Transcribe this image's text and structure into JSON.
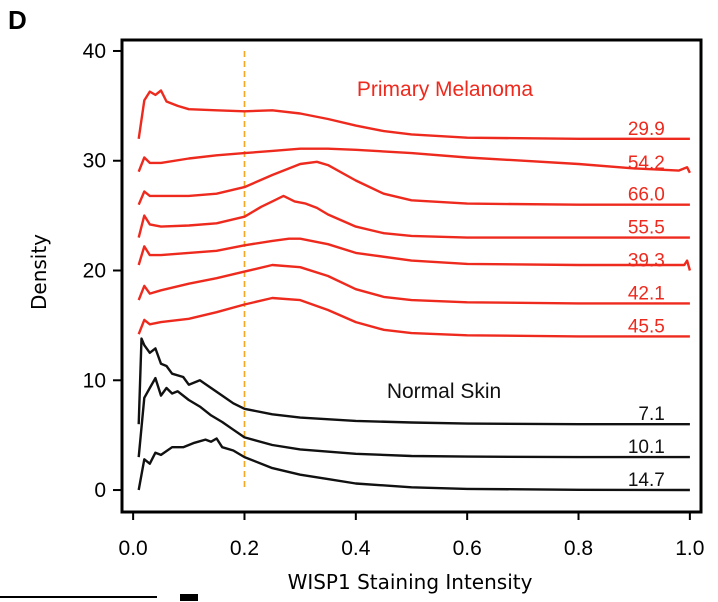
{
  "panel_letter": "D",
  "colors": {
    "melanoma": "#ee2a1e",
    "normal": "#111111",
    "reference_line": "#f5a623",
    "axis": "#000000"
  },
  "chart_data": {
    "type": "line",
    "title": "",
    "xlabel": "WISP1 Staining Intensity",
    "ylabel": "Density",
    "xlim": [
      -0.02,
      1.02
    ],
    "ylim": [
      -2,
      41
    ],
    "x_ticks": [
      "0.0",
      "0.2",
      "0.4",
      "0.6",
      "0.8",
      "1.0"
    ],
    "y_ticks": [
      "0",
      "10",
      "20",
      "30",
      "40"
    ],
    "reference_line_x": 0.2,
    "grid": false,
    "groups": [
      {
        "label": "Primary Melanoma",
        "color": "#ee2a1e"
      },
      {
        "label": "Normal Skin",
        "color": "#111111"
      }
    ],
    "series": [
      {
        "group": "Primary Melanoma",
        "label": "29.9",
        "color": "#ee2a1e",
        "points": [
          [
            0.01,
            32
          ],
          [
            0.02,
            35.5
          ],
          [
            0.03,
            36.3
          ],
          [
            0.04,
            36
          ],
          [
            0.05,
            36.4
          ],
          [
            0.06,
            35.4
          ],
          [
            0.08,
            35
          ],
          [
            0.1,
            34.7
          ],
          [
            0.15,
            34.6
          ],
          [
            0.2,
            34.5
          ],
          [
            0.25,
            34.6
          ],
          [
            0.3,
            34.3
          ],
          [
            0.35,
            33.8
          ],
          [
            0.4,
            33.2
          ],
          [
            0.45,
            32.7
          ],
          [
            0.5,
            32.4
          ],
          [
            0.6,
            32.1
          ],
          [
            0.8,
            32
          ],
          [
            1.0,
            32
          ]
        ]
      },
      {
        "group": "Primary Melanoma",
        "label": "54.2",
        "color": "#ee2a1e",
        "points": [
          [
            0.01,
            29
          ],
          [
            0.02,
            30.3
          ],
          [
            0.03,
            29.8
          ],
          [
            0.05,
            29.8
          ],
          [
            0.1,
            30.2
          ],
          [
            0.15,
            30.5
          ],
          [
            0.2,
            30.7
          ],
          [
            0.25,
            30.9
          ],
          [
            0.3,
            31.1
          ],
          [
            0.35,
            31.1
          ],
          [
            0.4,
            31
          ],
          [
            0.5,
            30.7
          ],
          [
            0.6,
            30.3
          ],
          [
            0.7,
            30
          ],
          [
            0.8,
            29.7
          ],
          [
            0.9,
            29.3
          ],
          [
            0.98,
            29.1
          ],
          [
            0.995,
            29.4
          ],
          [
            1.0,
            28.9
          ]
        ]
      },
      {
        "group": "Primary Melanoma",
        "label": "66.0",
        "color": "#ee2a1e",
        "points": [
          [
            0.01,
            26
          ],
          [
            0.02,
            27.2
          ],
          [
            0.03,
            26.8
          ],
          [
            0.05,
            26.8
          ],
          [
            0.1,
            26.8
          ],
          [
            0.15,
            27
          ],
          [
            0.2,
            27.6
          ],
          [
            0.25,
            28.7
          ],
          [
            0.3,
            29.7
          ],
          [
            0.33,
            29.9
          ],
          [
            0.35,
            29.6
          ],
          [
            0.4,
            28.2
          ],
          [
            0.45,
            27
          ],
          [
            0.5,
            26.4
          ],
          [
            0.6,
            26.1
          ],
          [
            0.8,
            26
          ],
          [
            1.0,
            26
          ]
        ]
      },
      {
        "group": "Primary Melanoma",
        "label": "55.5",
        "color": "#ee2a1e",
        "points": [
          [
            0.01,
            23
          ],
          [
            0.02,
            25
          ],
          [
            0.03,
            24.2
          ],
          [
            0.05,
            24
          ],
          [
            0.1,
            24.1
          ],
          [
            0.15,
            24.3
          ],
          [
            0.2,
            24.9
          ],
          [
            0.23,
            25.8
          ],
          [
            0.25,
            26.3
          ],
          [
            0.27,
            26.8
          ],
          [
            0.29,
            26.3
          ],
          [
            0.31,
            26.1
          ],
          [
            0.33,
            25.7
          ],
          [
            0.35,
            25.1
          ],
          [
            0.4,
            24
          ],
          [
            0.45,
            23.4
          ],
          [
            0.5,
            23.15
          ],
          [
            0.6,
            23
          ],
          [
            1.0,
            23
          ]
        ]
      },
      {
        "group": "Primary Melanoma",
        "label": "39.3",
        "color": "#ee2a1e",
        "points": [
          [
            0.01,
            20.5
          ],
          [
            0.02,
            22.2
          ],
          [
            0.03,
            21.4
          ],
          [
            0.05,
            21.4
          ],
          [
            0.1,
            21.6
          ],
          [
            0.15,
            21.8
          ],
          [
            0.2,
            22.3
          ],
          [
            0.25,
            22.7
          ],
          [
            0.28,
            22.9
          ],
          [
            0.3,
            22.9
          ],
          [
            0.35,
            22.4
          ],
          [
            0.4,
            21.6
          ],
          [
            0.5,
            20.9
          ],
          [
            0.6,
            20.6
          ],
          [
            0.8,
            20.5
          ],
          [
            0.99,
            20.5
          ],
          [
            0.995,
            20.9
          ],
          [
            1.0,
            20
          ]
        ]
      },
      {
        "group": "Primary Melanoma",
        "label": "42.1",
        "color": "#ee2a1e",
        "points": [
          [
            0.01,
            17.3
          ],
          [
            0.02,
            18.6
          ],
          [
            0.03,
            17.9
          ],
          [
            0.05,
            18.2
          ],
          [
            0.1,
            18.8
          ],
          [
            0.15,
            19.3
          ],
          [
            0.2,
            19.9
          ],
          [
            0.25,
            20.5
          ],
          [
            0.3,
            20.3
          ],
          [
            0.35,
            19.5
          ],
          [
            0.4,
            18.3
          ],
          [
            0.45,
            17.6
          ],
          [
            0.5,
            17.3
          ],
          [
            0.6,
            17.1
          ],
          [
            0.8,
            17
          ],
          [
            1.0,
            17
          ]
        ]
      },
      {
        "group": "Primary Melanoma",
        "label": "45.5",
        "color": "#ee2a1e",
        "points": [
          [
            0.01,
            14.2
          ],
          [
            0.02,
            15.5
          ],
          [
            0.03,
            15.1
          ],
          [
            0.05,
            15.3
          ],
          [
            0.1,
            15.6
          ],
          [
            0.15,
            16.2
          ],
          [
            0.2,
            16.9
          ],
          [
            0.25,
            17.5
          ],
          [
            0.3,
            17.3
          ],
          [
            0.35,
            16.4
          ],
          [
            0.4,
            15.3
          ],
          [
            0.45,
            14.6
          ],
          [
            0.5,
            14.3
          ],
          [
            0.6,
            14.1
          ],
          [
            0.8,
            14
          ],
          [
            1.0,
            14
          ]
        ]
      },
      {
        "group": "Normal Skin",
        "label": "7.1",
        "color": "#111111",
        "points": [
          [
            0.01,
            6
          ],
          [
            0.015,
            13.8
          ],
          [
            0.02,
            13.2
          ],
          [
            0.03,
            12.5
          ],
          [
            0.04,
            12.9
          ],
          [
            0.05,
            11.5
          ],
          [
            0.06,
            11.3
          ],
          [
            0.07,
            10.6
          ],
          [
            0.09,
            10.3
          ],
          [
            0.1,
            9.6
          ],
          [
            0.12,
            10
          ],
          [
            0.14,
            9.3
          ],
          [
            0.16,
            8.6
          ],
          [
            0.18,
            7.9
          ],
          [
            0.2,
            7.4
          ],
          [
            0.25,
            6.9
          ],
          [
            0.3,
            6.6
          ],
          [
            0.4,
            6.3
          ],
          [
            0.5,
            6.15
          ],
          [
            0.6,
            6.05
          ],
          [
            0.8,
            6
          ],
          [
            1.0,
            6
          ]
        ]
      },
      {
        "group": "Normal Skin",
        "label": "10.1",
        "color": "#111111",
        "points": [
          [
            0.01,
            3
          ],
          [
            0.02,
            8.4
          ],
          [
            0.03,
            9.3
          ],
          [
            0.04,
            10.2
          ],
          [
            0.05,
            8.6
          ],
          [
            0.06,
            9.3
          ],
          [
            0.07,
            8.8
          ],
          [
            0.08,
            9
          ],
          [
            0.1,
            8.2
          ],
          [
            0.12,
            7.6
          ],
          [
            0.14,
            6.8
          ],
          [
            0.16,
            6.2
          ],
          [
            0.18,
            5.5
          ],
          [
            0.2,
            4.8
          ],
          [
            0.25,
            4.1
          ],
          [
            0.3,
            3.7
          ],
          [
            0.4,
            3.3
          ],
          [
            0.5,
            3.1
          ],
          [
            0.6,
            3.05
          ],
          [
            0.8,
            3
          ],
          [
            1.0,
            3
          ]
        ]
      },
      {
        "group": "Normal Skin",
        "label": "14.7",
        "color": "#111111",
        "points": [
          [
            0.01,
            0
          ],
          [
            0.02,
            2.8
          ],
          [
            0.03,
            2.4
          ],
          [
            0.04,
            3.4
          ],
          [
            0.05,
            3.2
          ],
          [
            0.07,
            3.9
          ],
          [
            0.09,
            3.9
          ],
          [
            0.11,
            4.3
          ],
          [
            0.13,
            4.6
          ],
          [
            0.14,
            4.4
          ],
          [
            0.15,
            4.7
          ],
          [
            0.16,
            3.9
          ],
          [
            0.18,
            3.6
          ],
          [
            0.2,
            3
          ],
          [
            0.25,
            2
          ],
          [
            0.3,
            1.4
          ],
          [
            0.35,
            1
          ],
          [
            0.4,
            0.6
          ],
          [
            0.5,
            0.25
          ],
          [
            0.6,
            0.1
          ],
          [
            0.8,
            0.02
          ],
          [
            1.0,
            0
          ]
        ]
      }
    ]
  }
}
